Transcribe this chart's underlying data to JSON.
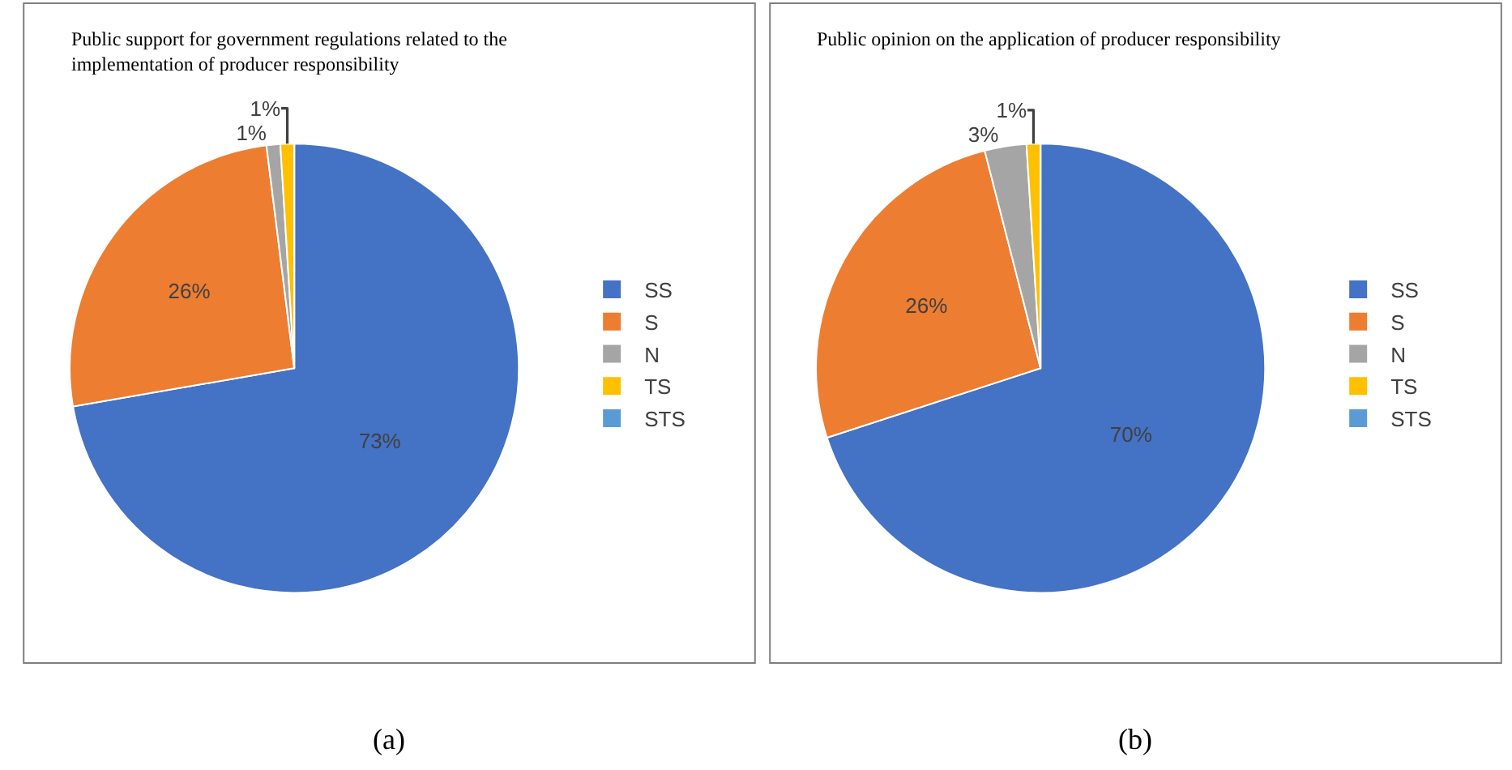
{
  "chart_data": [
    {
      "type": "pie",
      "title": "Public support for government regulations related to the implementation of producer responsibility",
      "categories": [
        "SS",
        "S",
        "N",
        "TS",
        "STS"
      ],
      "values": [
        73,
        26,
        1,
        1,
        0
      ],
      "colors": [
        "#4472c4",
        "#ed7d31",
        "#a5a5a5",
        "#ffc000",
        "#5b9bd5"
      ],
      "value_labels": [
        "73%",
        "26%",
        "1%",
        "1%",
        null
      ],
      "legend": "right",
      "annotations": [
        "(a)"
      ]
    },
    {
      "type": "pie",
      "title": "Public opinion on the application of producer responsibility",
      "categories": [
        "SS",
        "S",
        "N",
        "TS",
        "STS"
      ],
      "values": [
        70,
        26,
        3,
        1,
        0
      ],
      "colors": [
        "#4472c4",
        "#ed7d31",
        "#a5a5a5",
        "#ffc000",
        "#5b9bd5"
      ],
      "value_labels": [
        "70%",
        "26%",
        "3%",
        "1%",
        null
      ],
      "legend": "right",
      "annotations": [
        "(b)"
      ]
    }
  ]
}
